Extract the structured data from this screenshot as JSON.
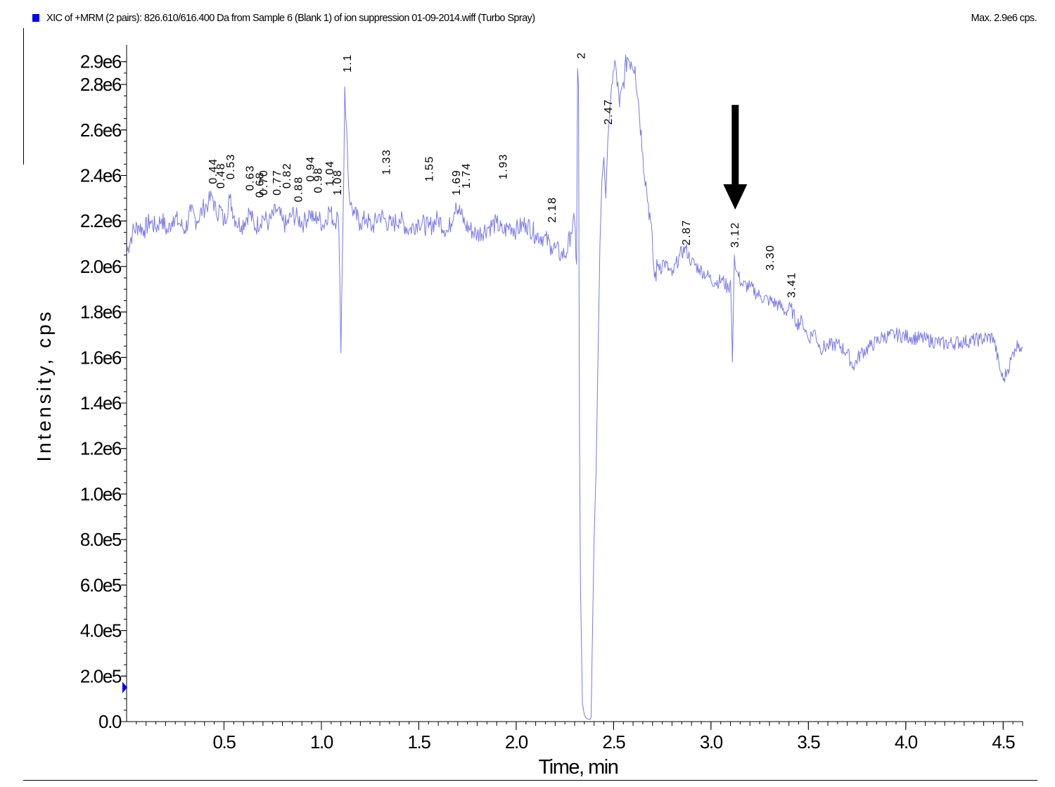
{
  "header": {
    "title": "XIC of +MRM (2 pairs): 826.610/616.400 Da  from Sample 6 (Blank 1) of ion suppression 01-09-2014.wiff (Turbo Spray)",
    "max_label": "Max. 2.9e6 cps.",
    "series_color": "#0000ee"
  },
  "chart_data": {
    "type": "line",
    "title": "XIC of +MRM (2 pairs): 826.610/616.400 Da  from Sample 6 (Blank 1) of ion suppression 01-09-2014.wiff (Turbo Spray)",
    "xlabel": "Time, min",
    "ylabel": "Intensity, cps",
    "xlim": [
      0.0,
      4.6
    ],
    "ylim": [
      0.0,
      2930000.0
    ],
    "grid": false,
    "line_color": "#7777ee",
    "x_ticks": [
      {
        "value": 0.5,
        "label": "0.5"
      },
      {
        "value": 1.0,
        "label": "1.0"
      },
      {
        "value": 1.5,
        "label": "1.5"
      },
      {
        "value": 2.0,
        "label": "2.0"
      },
      {
        "value": 2.5,
        "label": "2.5"
      },
      {
        "value": 3.0,
        "label": "3.0"
      },
      {
        "value": 3.5,
        "label": "3.5"
      },
      {
        "value": 4.0,
        "label": "4.0"
      },
      {
        "value": 4.5,
        "label": "4.5"
      }
    ],
    "y_ticks": [
      {
        "value": 0,
        "label": "0.0"
      },
      {
        "value": 200000,
        "label": "2.0e5"
      },
      {
        "value": 400000,
        "label": "4.0e5"
      },
      {
        "value": 600000,
        "label": "6.0e5"
      },
      {
        "value": 800000,
        "label": "8.0e5"
      },
      {
        "value": 1000000,
        "label": "1.0e6"
      },
      {
        "value": 1200000,
        "label": "1.2e6"
      },
      {
        "value": 1400000,
        "label": "1.4e6"
      },
      {
        "value": 1600000,
        "label": "1.6e6"
      },
      {
        "value": 1800000,
        "label": "1.8e6"
      },
      {
        "value": 2000000,
        "label": "2.0e6"
      },
      {
        "value": 2200000,
        "label": "2.2e6"
      },
      {
        "value": 2400000,
        "label": "2.4e6"
      },
      {
        "value": 2600000,
        "label": "2.6e6"
      },
      {
        "value": 2800000,
        "label": "2.8e6"
      },
      {
        "value": 2900000,
        "label": "2.9e6"
      }
    ],
    "series": [
      {
        "x": [
          0.0,
          0.03,
          0.06,
          0.09,
          0.12,
          0.15,
          0.18,
          0.21,
          0.24,
          0.27,
          0.3,
          0.33,
          0.36,
          0.39,
          0.42,
          0.44,
          0.46,
          0.48,
          0.5,
          0.53,
          0.56,
          0.59,
          0.63,
          0.66,
          0.7,
          0.73,
          0.77,
          0.8,
          0.82,
          0.85,
          0.88,
          0.91,
          0.94,
          0.96,
          0.98,
          1.01,
          1.04,
          1.07,
          1.08,
          1.09,
          1.095,
          1.1,
          1.105,
          1.11,
          1.115,
          1.12,
          1.13,
          1.14,
          1.15,
          1.17,
          1.2,
          1.23,
          1.26,
          1.3,
          1.33,
          1.36,
          1.4,
          1.45,
          1.5,
          1.55,
          1.6,
          1.65,
          1.69,
          1.74,
          1.8,
          1.85,
          1.9,
          1.93,
          1.97,
          2.0,
          2.05,
          2.1,
          2.14,
          2.18,
          2.2,
          2.23,
          2.26,
          2.28,
          2.3,
          2.31,
          2.315,
          2.32,
          2.325,
          2.33,
          2.34,
          2.35,
          2.36,
          2.37,
          2.38,
          2.385,
          2.39,
          2.4,
          2.41,
          2.42,
          2.43,
          2.44,
          2.45,
          2.46,
          2.47,
          2.49,
          2.51,
          2.53,
          2.55,
          2.57,
          2.59,
          2.61,
          2.63,
          2.65,
          2.67,
          2.69,
          2.71,
          2.73,
          2.76,
          2.8,
          2.84,
          2.87,
          2.9,
          2.94,
          2.98,
          3.02,
          3.06,
          3.09,
          3.1,
          3.105,
          3.11,
          3.12,
          3.13,
          3.16,
          3.2,
          3.25,
          3.3,
          3.35,
          3.38,
          3.41,
          3.44,
          3.47,
          3.5,
          3.53,
          3.56,
          3.6,
          3.65,
          3.7,
          3.73,
          3.77,
          3.82,
          3.88,
          3.95,
          4.02,
          4.1,
          4.2,
          4.3,
          4.38,
          4.45,
          4.48,
          4.5,
          4.52,
          4.54,
          4.56,
          4.58,
          4.6
        ],
        "y": [
          2060000,
          2150000,
          2180000,
          2160000,
          2200000,
          2170000,
          2210000,
          2150000,
          2220000,
          2190000,
          2160000,
          2240000,
          2200000,
          2250000,
          2280000,
          2310000,
          2230000,
          2260000,
          2190000,
          2300000,
          2200000,
          2180000,
          2240000,
          2170000,
          2220000,
          2190000,
          2250000,
          2200000,
          2180000,
          2230000,
          2210000,
          2190000,
          2240000,
          2200000,
          2220000,
          2180000,
          2250000,
          2190000,
          2240000,
          2150000,
          1900000,
          1620000,
          1900000,
          2150000,
          2400000,
          2790000,
          2600000,
          2350000,
          2270000,
          2230000,
          2190000,
          2210000,
          2170000,
          2230000,
          2200000,
          2180000,
          2210000,
          2160000,
          2200000,
          2170000,
          2210000,
          2150000,
          2280000,
          2180000,
          2140000,
          2170000,
          2190000,
          2150000,
          2180000,
          2160000,
          2190000,
          2140000,
          2130000,
          2090000,
          2080000,
          2050000,
          2060000,
          2150000,
          2200000,
          2010000,
          2870000,
          2800000,
          1300000,
          600000,
          80000,
          30000,
          15000,
          10000,
          10000,
          20000,
          300000,
          800000,
          1100000,
          1600000,
          2100000,
          2380000,
          2480000,
          2300000,
          2550000,
          2800000,
          2890000,
          2700000,
          2810000,
          2920000,
          2900000,
          2880000,
          2700000,
          2500000,
          2330000,
          2200000,
          1950000,
          2010000,
          2020000,
          1960000,
          2050000,
          2080000,
          2020000,
          1990000,
          1960000,
          1930000,
          1940000,
          1900000,
          1940000,
          1790000,
          1580000,
          2050000,
          1980000,
          1920000,
          1910000,
          1870000,
          1850000,
          1830000,
          1800000,
          1820000,
          1750000,
          1760000,
          1680000,
          1720000,
          1640000,
          1650000,
          1660000,
          1620000,
          1560000,
          1620000,
          1650000,
          1690000,
          1700000,
          1690000,
          1680000,
          1660000,
          1670000,
          1680000,
          1690000,
          1560000,
          1500000,
          1540000,
          1590000,
          1640000,
          1660000,
          1640000
        ]
      }
    ],
    "peak_labels": [
      {
        "x": 0.44,
        "y": 2350000,
        "label": "0.44"
      },
      {
        "x": 0.48,
        "y": 2330000,
        "label": "0.48"
      },
      {
        "x": 0.53,
        "y": 2370000,
        "label": "0.53"
      },
      {
        "x": 0.63,
        "y": 2320000,
        "label": "0.63"
      },
      {
        "x": 0.68,
        "y": 2290000,
        "label": "0.68"
      },
      {
        "x": 0.7,
        "y": 2300000,
        "label": "0.70"
      },
      {
        "x": 0.77,
        "y": 2300000,
        "label": "0.77"
      },
      {
        "x": 0.82,
        "y": 2330000,
        "label": "0.82"
      },
      {
        "x": 0.88,
        "y": 2270000,
        "label": "0.88"
      },
      {
        "x": 0.94,
        "y": 2360000,
        "label": "0.94"
      },
      {
        "x": 0.98,
        "y": 2310000,
        "label": "0.98"
      },
      {
        "x": 1.04,
        "y": 2340000,
        "label": "1.04"
      },
      {
        "x": 1.08,
        "y": 2300000,
        "label": "1.08"
      },
      {
        "x": 1.13,
        "y": 2840000,
        "label": "1.1"
      },
      {
        "x": 1.33,
        "y": 2390000,
        "label": "1.33"
      },
      {
        "x": 1.55,
        "y": 2360000,
        "label": "1.55"
      },
      {
        "x": 1.69,
        "y": 2300000,
        "label": "1.69"
      },
      {
        "x": 1.74,
        "y": 2330000,
        "label": "1.74"
      },
      {
        "x": 1.93,
        "y": 2370000,
        "label": "1.93"
      },
      {
        "x": 2.18,
        "y": 2180000,
        "label": "2.18"
      },
      {
        "x": 2.33,
        "y": 2900000,
        "label": "2"
      },
      {
        "x": 2.47,
        "y": 2610000,
        "label": "2.47"
      },
      {
        "x": 2.87,
        "y": 2080000,
        "label": "2.87"
      },
      {
        "x": 3.12,
        "y": 2070000,
        "label": "3.12"
      },
      {
        "x": 3.3,
        "y": 1970000,
        "label": "3.30"
      },
      {
        "x": 3.41,
        "y": 1850000,
        "label": "3.41"
      }
    ],
    "annotations": [
      {
        "type": "arrow",
        "direction": "down",
        "x": 3.11,
        "y_from": 2710000,
        "y_to": 2250000,
        "color": "#000000"
      },
      {
        "type": "marker",
        "shape": "triangle-right",
        "axis": "y",
        "y": 150000,
        "color": "#0000ee"
      }
    ]
  }
}
